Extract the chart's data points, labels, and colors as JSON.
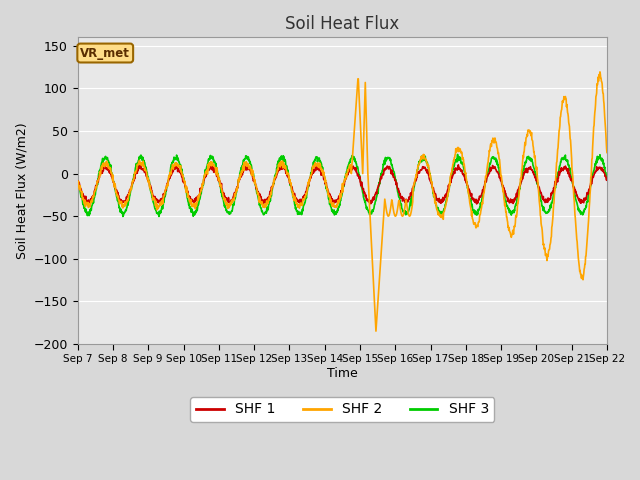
{
  "title": "Soil Heat Flux",
  "xlabel": "Time",
  "ylabel": "Soil Heat Flux (W/m2)",
  "ylim": [
    -200,
    160
  ],
  "xlim": [
    0,
    15
  ],
  "yticks": [
    -200,
    -150,
    -100,
    -50,
    0,
    50,
    100,
    150
  ],
  "xtick_labels": [
    "Sep 7",
    "Sep 8",
    "Sep 9",
    "Sep 10",
    "Sep 11",
    "Sep 12",
    "Sep 13",
    "Sep 14",
    "Sep 15",
    "Sep 16",
    "Sep 17",
    "Sep 18",
    "Sep 19",
    "Sep 20",
    "Sep 21",
    "Sep 22"
  ],
  "shf1_color": "#cc0000",
  "shf2_color": "#ffa500",
  "shf3_color": "#00cc00",
  "plot_bg_color": "#e8e8e8",
  "fig_bg_color": "#d8d8d8",
  "legend_label1": "SHF 1",
  "legend_label2": "SHF 2",
  "legend_label3": "SHF 3",
  "annotation_text": "VR_met",
  "grid_color": "#ffffff",
  "line_width": 1.2
}
